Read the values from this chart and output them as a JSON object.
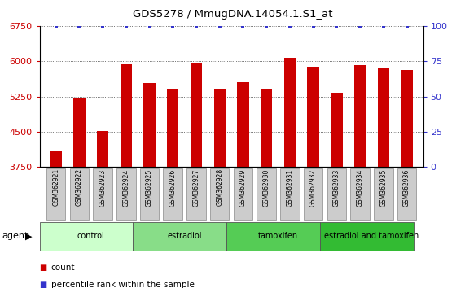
{
  "title": "GDS5278 / MmugDNA.14054.1.S1_at",
  "samples": [
    "GSM362921",
    "GSM362922",
    "GSM362923",
    "GSM362924",
    "GSM362925",
    "GSM362926",
    "GSM362927",
    "GSM362928",
    "GSM362929",
    "GSM362930",
    "GSM362931",
    "GSM362932",
    "GSM362933",
    "GSM362934",
    "GSM362935",
    "GSM362936"
  ],
  "values": [
    4100,
    5200,
    4520,
    5930,
    5530,
    5400,
    5950,
    5390,
    5560,
    5400,
    6080,
    5880,
    5330,
    5920,
    5870,
    5820
  ],
  "bar_color": "#cc0000",
  "percentile_color": "#3333cc",
  "ylim_left": [
    3750,
    6750
  ],
  "ylim_right": [
    0,
    100
  ],
  "yticks_left": [
    3750,
    4500,
    5250,
    6000,
    6750
  ],
  "yticks_right": [
    0,
    25,
    50,
    75,
    100
  ],
  "groups": [
    {
      "label": "control",
      "start": 0,
      "end": 4,
      "color": "#ccffcc"
    },
    {
      "label": "estradiol",
      "start": 4,
      "end": 8,
      "color": "#88dd88"
    },
    {
      "label": "tamoxifen",
      "start": 8,
      "end": 12,
      "color": "#55cc55"
    },
    {
      "label": "estradiol and tamoxifen",
      "start": 12,
      "end": 16,
      "color": "#33bb33"
    }
  ],
  "agent_label": "agent",
  "legend_count_label": "count",
  "legend_percentile_label": "percentile rank within the sample",
  "background_color": "#ffffff",
  "bar_width": 0.5,
  "tick_color_left": "#cc0000",
  "tick_color_right": "#3333cc",
  "grid_linestyle": "dotted",
  "grid_color": "#444444",
  "sample_box_color": "#cccccc",
  "sample_box_edge": "#888888"
}
